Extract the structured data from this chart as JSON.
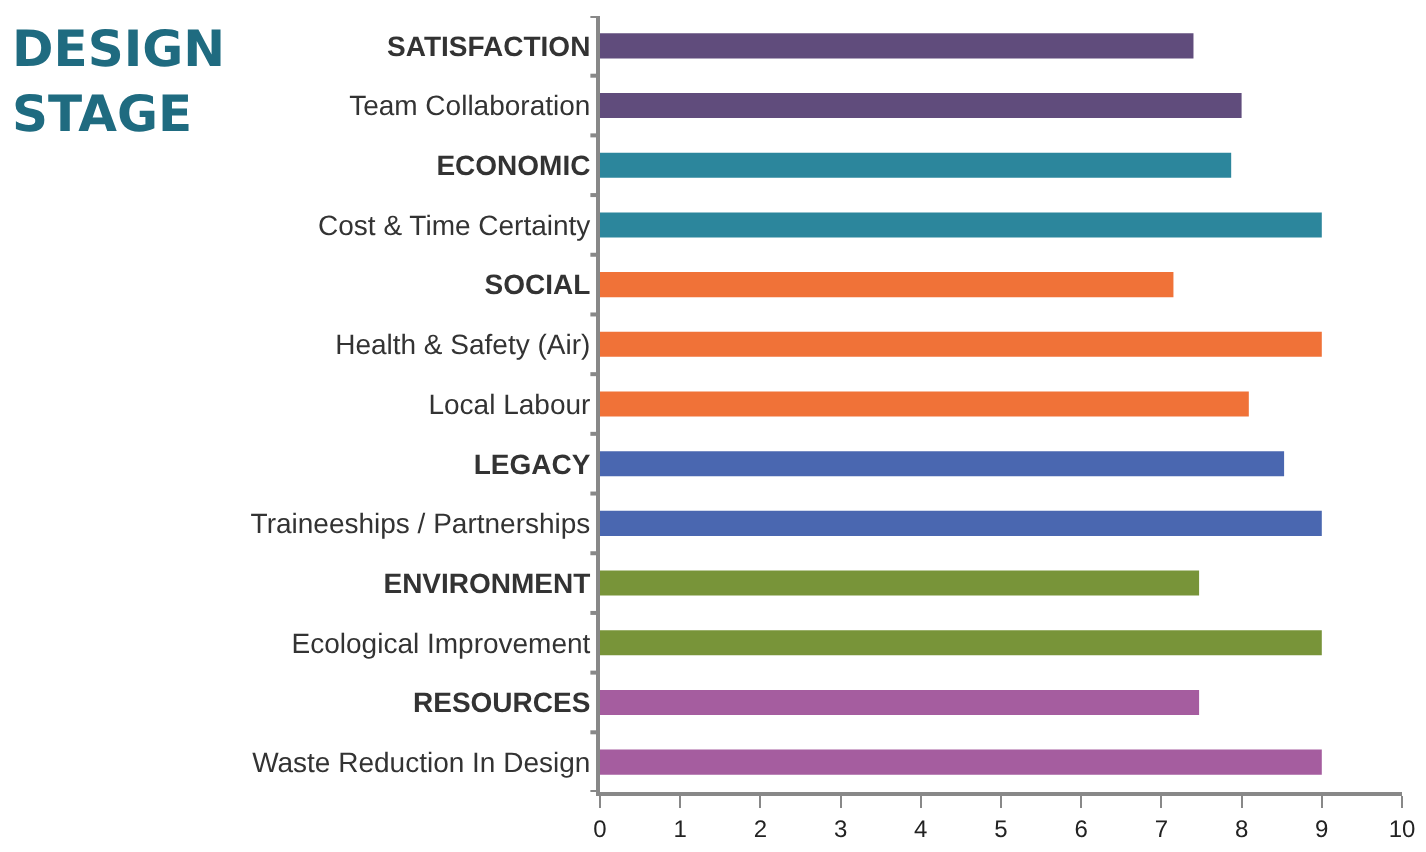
{
  "chart_data": {
    "type": "bar",
    "orientation": "horizontal",
    "title": "DESIGN STAGE",
    "categories": [
      "SATISFACTION",
      "Team Collaboration",
      "ECONOMIC",
      "Cost & Time Certainty",
      "SOCIAL",
      "Health & Safety (Air)",
      "Local Labour",
      "LEGACY",
      "Traineeships / Partnerships",
      "ENVIRONMENT",
      "Ecological Improvement",
      "RESOURCES",
      "Waste Reduction In Design"
    ],
    "values": [
      7.4,
      8.0,
      7.87,
      9.0,
      7.15,
      9.0,
      8.09,
      8.53,
      9.0,
      7.47,
      9.0,
      7.47,
      9.0
    ],
    "colors": [
      "#604c7c",
      "#604c7c",
      "#2c869c",
      "#2c869c",
      "#f07238",
      "#f07238",
      "#f07238",
      "#4a67b0",
      "#4a67b0",
      "#789439",
      "#789439",
      "#a55d9f",
      "#a55d9f"
    ],
    "xlim": [
      0,
      10
    ],
    "xticks": [
      0,
      1,
      2,
      3,
      4,
      5,
      6,
      7,
      8,
      9,
      10
    ],
    "grid": false
  }
}
